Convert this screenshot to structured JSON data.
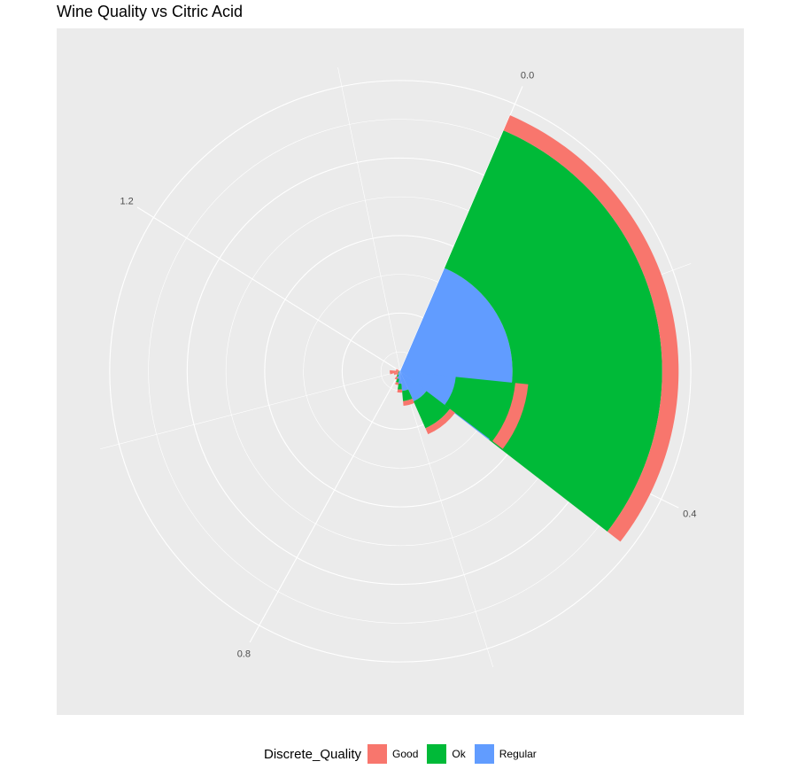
{
  "chart_data": {
    "type": "bar",
    "coord": "polar",
    "title": "Wine Quality vs Citric Acid",
    "theta_ticks": [
      "0.0",
      "0.4",
      "0.8",
      "1.2"
    ],
    "theta_tick_values": [
      0.0,
      0.4,
      0.8,
      1.2
    ],
    "theta_range": [
      -0.1,
      1.45
    ],
    "radius_max": 1.0,
    "radial_ticks_shown": false,
    "grid": true,
    "stacked": true,
    "legend_position": "bottom",
    "legend_title": "Discrete_Quality",
    "series": [
      {
        "name": "Regular",
        "color": "#619CFF"
      },
      {
        "name": "Ok",
        "color": "#00BA38"
      },
      {
        "name": "Good",
        "color": "#F8766D"
      }
    ],
    "bins": [
      {
        "x": 0.1,
        "Regular": 0.362,
        "Ok": 0.483,
        "Good": 0.053
      },
      {
        "x": 0.375,
        "Regular": 0.18,
        "Ok": 0.193,
        "Good": 0.042
      },
      {
        "x": 0.52,
        "Regular": 0.106,
        "Ok": 0.095,
        "Good": 0.021
      },
      {
        "x": 0.625,
        "Regular": 0.064,
        "Ok": 0.033,
        "Good": 0.015
      },
      {
        "x": 0.68,
        "Regular": 0.04,
        "Ok": 0.019,
        "Good": 0.01
      },
      {
        "x": 0.74,
        "Regular": 0.025,
        "Ok": 0.012,
        "Good": 0.008
      },
      {
        "x": 0.8,
        "Regular": 0.012,
        "Ok": 0.008,
        "Good": 0.01
      },
      {
        "x": 0.87,
        "Regular": 0.006,
        "Ok": 0.004,
        "Good": 0.006
      },
      {
        "x": 0.96,
        "Regular": 0.004,
        "Ok": 0.003,
        "Good": 0.015
      },
      {
        "x": 1.02,
        "Regular": 0.002,
        "Ok": 0.002,
        "Good": 0.03
      },
      {
        "x": 1.15,
        "Regular": 0.002,
        "Ok": 0.002,
        "Good": 0.01
      }
    ]
  }
}
